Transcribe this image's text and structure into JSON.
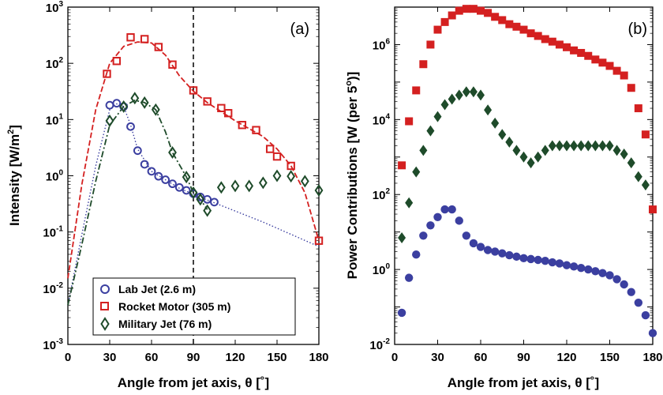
{
  "chart_data": [
    {
      "type": "scatter",
      "panel_label": "(a)",
      "xlabel_text": "Angle from jet axis, ",
      "xlabel_symbol": "θ [˚]",
      "ylabel_text": "Intensity [W/m",
      "ylabel_sup": "2",
      "ylabel_close": "]",
      "xlim": [
        0,
        180
      ],
      "ylim": [
        0.001,
        1000
      ],
      "yscale": "log",
      "xticks": [
        0,
        30,
        60,
        90,
        120,
        150,
        180
      ],
      "yticks_exp": [
        -3,
        -2,
        -1,
        0,
        1,
        2,
        3
      ],
      "ytick_base": "10",
      "vline_x": 90,
      "legend_position": "bottom-left",
      "series": [
        {
          "name": "Lab Jet (2.6 m)",
          "color": "#3b3fa0",
          "marker": "circle",
          "points": [
            [
              30,
              18
            ],
            [
              35,
              19.5
            ],
            [
              40,
              17
            ],
            [
              45,
              7.5
            ],
            [
              50,
              2.8
            ],
            [
              55,
              1.6
            ],
            [
              60,
              1.2
            ],
            [
              65,
              0.98
            ],
            [
              70,
              0.85
            ],
            [
              75,
              0.72
            ],
            [
              80,
              0.62
            ],
            [
              85,
              0.55
            ],
            [
              90,
              0.48
            ],
            [
              95,
              0.42
            ],
            [
              100,
              0.38
            ],
            [
              105,
              0.34
            ]
          ],
          "fit": [
            [
              0,
              0.005
            ],
            [
              10,
              0.09
            ],
            [
              20,
              1.5
            ],
            [
              30,
              15
            ],
            [
              35,
              19
            ],
            [
              40,
              17
            ],
            [
              45,
              8
            ],
            [
              50,
              3
            ],
            [
              60,
              1.2
            ],
            [
              80,
              0.6
            ],
            [
              100,
              0.37
            ],
            [
              140,
              0.15
            ],
            [
              180,
              0.055
            ]
          ]
        },
        {
          "name": "Rocket Motor (305 m)",
          "color": "#d42020",
          "marker": "square",
          "points": [
            [
              28,
              65
            ],
            [
              35,
              110
            ],
            [
              45,
              290
            ],
            [
              55,
              270
            ],
            [
              65,
              195
            ],
            [
              75,
              95
            ],
            [
              90,
              33
            ],
            [
              100,
              21
            ],
            [
              110,
              16
            ],
            [
              115,
              13
            ],
            [
              125,
              8
            ],
            [
              135,
              6.5
            ],
            [
              145,
              3
            ],
            [
              150,
              2.2
            ],
            [
              160,
              1.5
            ],
            [
              180,
              0.07
            ]
          ],
          "fit": [
            [
              0,
              0.015
            ],
            [
              10,
              0.7
            ],
            [
              20,
              15
            ],
            [
              30,
              100
            ],
            [
              40,
              200
            ],
            [
              50,
              240
            ],
            [
              60,
              230
            ],
            [
              70,
              140
            ],
            [
              80,
              60
            ],
            [
              90,
              32
            ],
            [
              100,
              20
            ],
            [
              120,
              9.5
            ],
            [
              140,
              5
            ],
            [
              150,
              3
            ],
            [
              160,
              1.5
            ],
            [
              170,
              0.5
            ],
            [
              180,
              0.07
            ]
          ]
        },
        {
          "name": "Military Jet (76 m)",
          "color": "#1e4b2a",
          "marker": "diamond",
          "points": [
            [
              30,
              9.5
            ],
            [
              40,
              17
            ],
            [
              48,
              24
            ],
            [
              55,
              20
            ],
            [
              63,
              15
            ],
            [
              75,
              2.6
            ],
            [
              85,
              0.95
            ],
            [
              90,
              0.5
            ],
            [
              95,
              0.38
            ],
            [
              100,
              0.24
            ],
            [
              110,
              0.62
            ],
            [
              120,
              0.66
            ],
            [
              130,
              0.66
            ],
            [
              140,
              0.75
            ],
            [
              150,
              1
            ],
            [
              160,
              0.98
            ],
            [
              170,
              0.8
            ],
            [
              180,
              0.55
            ]
          ],
          "fit": [
            [
              0,
              0.005
            ],
            [
              10,
              0.06
            ],
            [
              20,
              0.8
            ],
            [
              30,
              8
            ],
            [
              40,
              17
            ],
            [
              48,
              22
            ],
            [
              55,
              20
            ],
            [
              63,
              15
            ],
            [
              70,
              6
            ],
            [
              75,
              2.6
            ],
            [
              85,
              0.95
            ],
            [
              90,
              0.5
            ],
            [
              95,
              0.38
            ],
            [
              100,
              0.25
            ]
          ]
        }
      ]
    },
    {
      "type": "scatter",
      "panel_label": "(b)",
      "xlabel_text": "Angle from jet axis, ",
      "xlabel_symbol": "θ [˚]",
      "ylabel_text": "Power Contributions [W (per 5",
      "ylabel_sup": "o",
      "ylabel_close": ")]",
      "xlim": [
        0,
        180
      ],
      "ylim": [
        0.01,
        10000000
      ],
      "yscale": "log",
      "xticks": [
        0,
        30,
        60,
        90,
        120,
        150,
        180
      ],
      "yticks_exp": [
        -2,
        0,
        2,
        4,
        6
      ],
      "ytick_base": "10",
      "series": [
        {
          "name": "Lab Jet (2.6 m)",
          "color": "#3b3fa0",
          "marker": "circle",
          "points": [
            [
              5,
              0.07
            ],
            [
              10,
              0.6
            ],
            [
              15,
              2.5
            ],
            [
              20,
              8
            ],
            [
              25,
              15
            ],
            [
              30,
              25
            ],
            [
              35,
              40
            ],
            [
              40,
              40
            ],
            [
              45,
              20
            ],
            [
              50,
              8
            ],
            [
              55,
              5
            ],
            [
              60,
              4
            ],
            [
              65,
              3.3
            ],
            [
              70,
              3
            ],
            [
              75,
              2.7
            ],
            [
              80,
              2.4
            ],
            [
              85,
              2.2
            ],
            [
              90,
              2
            ],
            [
              95,
              1.9
            ],
            [
              100,
              1.8
            ],
            [
              105,
              1.7
            ],
            [
              110,
              1.55
            ],
            [
              115,
              1.45
            ],
            [
              120,
              1.3
            ],
            [
              125,
              1.2
            ],
            [
              130,
              1.1
            ],
            [
              135,
              1
            ],
            [
              140,
              0.9
            ],
            [
              145,
              0.8
            ],
            [
              150,
              0.7
            ],
            [
              155,
              0.55
            ],
            [
              160,
              0.4
            ],
            [
              165,
              0.25
            ],
            [
              170,
              0.13
            ],
            [
              175,
              0.06
            ],
            [
              180,
              0.02
            ]
          ]
        },
        {
          "name": "Rocket Motor (305 m)",
          "color": "#d42020",
          "marker": "square",
          "points": [
            [
              5,
              600
            ],
            [
              10,
              9000
            ],
            [
              15,
              60000
            ],
            [
              20,
              300000
            ],
            [
              25,
              1000000
            ],
            [
              30,
              2500000
            ],
            [
              35,
              4000000
            ],
            [
              40,
              6000000
            ],
            [
              45,
              8000000
            ],
            [
              50,
              9000000
            ],
            [
              55,
              9000000
            ],
            [
              60,
              8000000
            ],
            [
              65,
              7000000
            ],
            [
              70,
              5500000
            ],
            [
              75,
              4500000
            ],
            [
              80,
              3500000
            ],
            [
              85,
              3000000
            ],
            [
              90,
              2500000
            ],
            [
              95,
              2000000
            ],
            [
              100,
              1700000
            ],
            [
              105,
              1400000
            ],
            [
              110,
              1200000
            ],
            [
              115,
              1000000
            ],
            [
              120,
              850000
            ],
            [
              125,
              700000
            ],
            [
              130,
              600000
            ],
            [
              135,
              500000
            ],
            [
              140,
              400000
            ],
            [
              145,
              330000
            ],
            [
              150,
              270000
            ],
            [
              155,
              200000
            ],
            [
              160,
              150000
            ],
            [
              165,
              70000
            ],
            [
              170,
              20000
            ],
            [
              175,
              4000
            ],
            [
              180,
              40
            ]
          ]
        },
        {
          "name": "Military Jet (76 m)",
          "color": "#1e4b2a",
          "marker": "diamond",
          "points": [
            [
              5,
              7
            ],
            [
              10,
              60
            ],
            [
              15,
              400
            ],
            [
              20,
              1500
            ],
            [
              25,
              5000
            ],
            [
              30,
              12000
            ],
            [
              35,
              25000
            ],
            [
              40,
              35000
            ],
            [
              45,
              45000
            ],
            [
              50,
              55000
            ],
            [
              55,
              55000
            ],
            [
              60,
              45000
            ],
            [
              65,
              18000
            ],
            [
              70,
              8000
            ],
            [
              75,
              4000
            ],
            [
              80,
              2500
            ],
            [
              85,
              1500
            ],
            [
              90,
              1000
            ],
            [
              95,
              700
            ],
            [
              100,
              1000
            ],
            [
              105,
              1500
            ],
            [
              110,
              2000
            ],
            [
              115,
              2000
            ],
            [
              120,
              2000
            ],
            [
              125,
              2000
            ],
            [
              130,
              2000
            ],
            [
              135,
              2000
            ],
            [
              140,
              2000
            ],
            [
              145,
              2000
            ],
            [
              150,
              2000
            ],
            [
              155,
              1500
            ],
            [
              160,
              1200
            ],
            [
              165,
              700
            ],
            [
              170,
              300
            ],
            [
              175,
              180
            ]
          ]
        }
      ]
    }
  ]
}
